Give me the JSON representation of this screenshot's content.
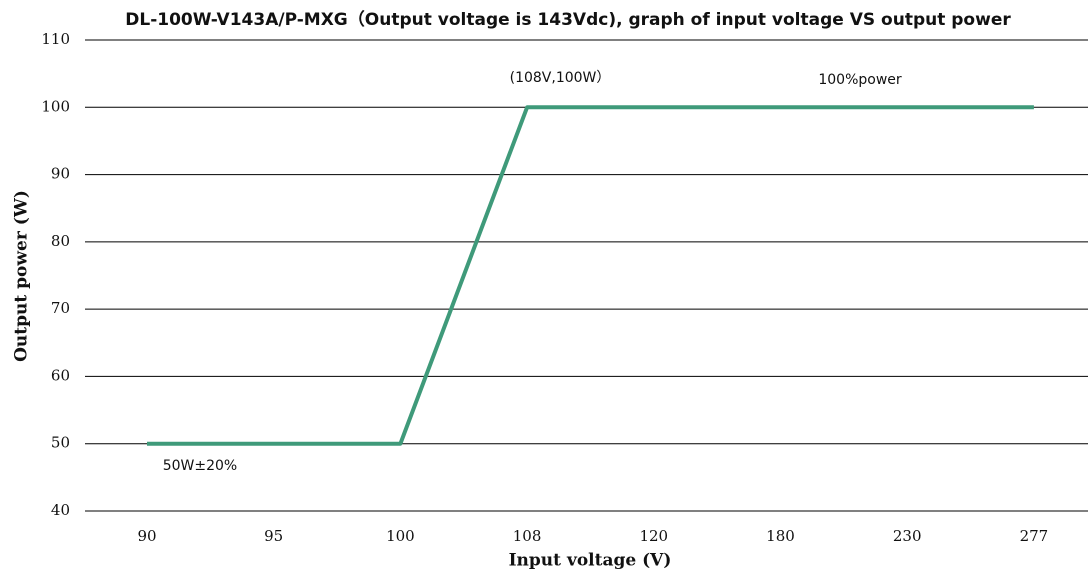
{
  "chart_data": {
    "type": "line",
    "title": "DL-100W-V143A/P-MXG（Output voltage is 143Vdc), graph of input voltage VS output power",
    "x_label": "Input voltage (V)",
    "y_label": "Output power (W)",
    "categories": [
      "90",
      "95",
      "100",
      "108",
      "120",
      "180",
      "230",
      "277"
    ],
    "series": [
      {
        "name": "Output power",
        "color": "#3f9a7a",
        "values": [
          50,
          50,
          50,
          100,
          100,
          100,
          100,
          100
        ]
      }
    ],
    "ylim": [
      40,
      110
    ],
    "yticks": [
      40,
      50,
      60,
      70,
      80,
      90,
      100,
      110
    ],
    "grid": true,
    "annotations": [
      "(108V,100W）",
      "100%power",
      "50W±20%"
    ]
  }
}
